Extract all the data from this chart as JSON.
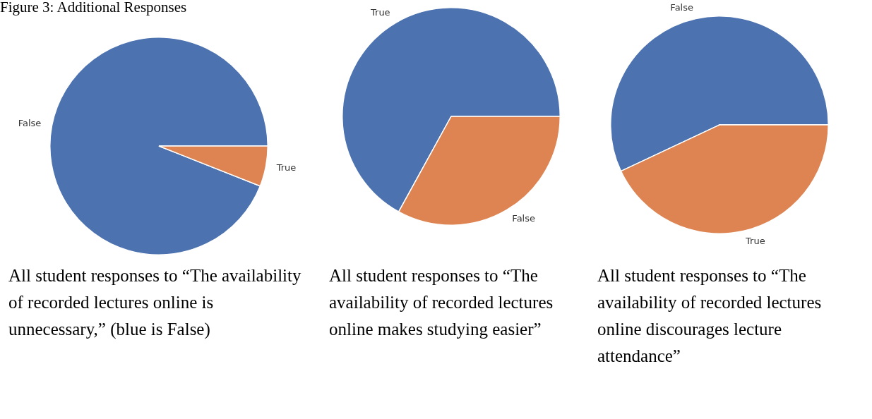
{
  "chart_data": [
    {
      "type": "pie",
      "title": "Figure 3: Additional Responses",
      "categories": [
        "False",
        "True"
      ],
      "values": [
        94,
        6
      ],
      "colors": [
        "#4c72b0",
        "#dd8452"
      ],
      "legend": false,
      "annotations": [
        "All student responses to “The availability of recorded lectures online is unnecessary,” (blue is False)"
      ]
    },
    {
      "type": "pie",
      "categories": [
        "True",
        "False"
      ],
      "values": [
        67,
        33
      ],
      "colors": [
        "#4c72b0",
        "#dd8452"
      ],
      "legend": false,
      "annotations": [
        "All student responses to “The availability of recorded lectures online makes studying easier”"
      ]
    },
    {
      "type": "pie",
      "categories": [
        "False",
        "True"
      ],
      "values": [
        57,
        43
      ],
      "colors": [
        "#4c72b0",
        "#dd8452"
      ],
      "legend": false,
      "annotations": [
        "All student responses to “The availability of recorded lectures online discourages lecture attendance”"
      ]
    }
  ]
}
